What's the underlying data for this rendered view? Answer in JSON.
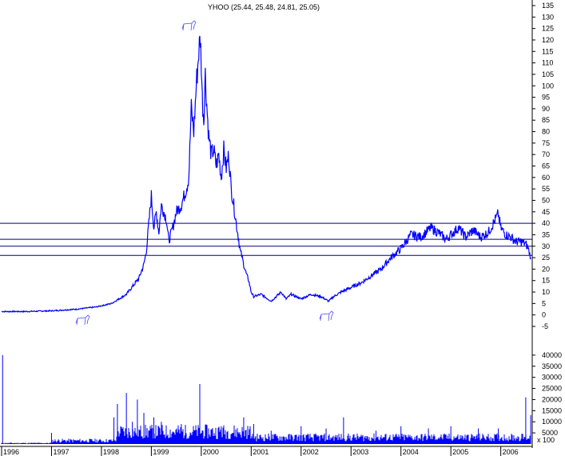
{
  "chart_data": {
    "type": "line",
    "title": "YHOO (25.44, 25.48, 24.81, 25.05)",
    "colors": {
      "price": "#0000ff",
      "volume": "#0000ff",
      "hlines": "#000080",
      "annotations": "#4a4aff",
      "axis": "#000000"
    },
    "x_ticks": [
      "1996",
      "1997",
      "1998",
      "1999",
      "2000",
      "2001",
      "2002",
      "2003",
      "2004",
      "2005",
      "2006"
    ],
    "y_ticks": [
      "-5",
      "0",
      "5",
      "10",
      "15",
      "20",
      "25",
      "30",
      "35",
      "40",
      "45",
      "50",
      "55",
      "60",
      "65",
      "70",
      "75",
      "80",
      "85",
      "90",
      "95",
      "100",
      "105",
      "110",
      "115",
      "120",
      "125",
      "130",
      "135"
    ],
    "ylim": [
      -5,
      135
    ],
    "volume_ticks": [
      "5000",
      "10000",
      "15000",
      "20000",
      "25000",
      "30000",
      "35000",
      "40000"
    ],
    "volume_ylim": [
      0,
      45000
    ],
    "volume_suffix_label": "x 100",
    "horizontal_lines": [
      40,
      33,
      30,
      26
    ],
    "series": [
      {
        "kind": "price",
        "x": [
          1996.0,
          1996.5,
          1997.0,
          1997.5,
          1997.9,
          1998.2,
          1998.5,
          1998.75,
          1998.85,
          1998.9,
          1998.95,
          1999.0,
          1999.05,
          1999.1,
          1999.15,
          1999.2,
          1999.3,
          1999.35,
          1999.45,
          1999.5,
          1999.6,
          1999.7,
          1999.75,
          1999.8,
          1999.85,
          1999.9,
          1999.95,
          1999.98,
          2000.0,
          2000.02,
          2000.05,
          2000.08,
          2000.12,
          2000.15,
          2000.2,
          2000.25,
          2000.3,
          2000.35,
          2000.4,
          2000.45,
          2000.5,
          2000.55,
          2000.6,
          2000.65,
          2000.7,
          2000.75,
          2000.78,
          2000.82,
          2000.85,
          2000.9,
          2000.95,
          2001.0,
          2001.05,
          2001.2,
          2001.4,
          2001.5,
          2001.6,
          2001.7,
          2001.8,
          2002.0,
          2002.2,
          2002.4,
          2002.55,
          2002.65,
          2002.8,
          2003.0,
          2003.2,
          2003.4,
          2003.6,
          2003.8,
          2004.0,
          2004.1,
          2004.2,
          2004.4,
          2004.6,
          2004.75,
          2004.9,
          2005.0,
          2005.15,
          2005.3,
          2005.45,
          2005.6,
          2005.75,
          2005.85,
          2005.95,
          2006.0,
          2006.1,
          2006.2,
          2006.3,
          2006.4,
          2006.5,
          2006.55,
          2006.6
        ],
        "values": [
          1.5,
          1.5,
          1.8,
          2.5,
          3.5,
          5,
          9,
          16,
          22,
          28,
          40,
          52,
          38,
          45,
          36,
          48,
          42,
          32,
          40,
          45,
          48,
          55,
          60,
          90,
          80,
          100,
          115,
          121,
          110,
          95,
          85,
          105,
          88,
          78,
          70,
          72,
          65,
          70,
          60,
          72,
          64,
          70,
          55,
          48,
          40,
          33,
          28,
          25,
          22,
          18,
          15,
          10,
          8,
          9,
          6,
          8,
          10,
          7,
          9,
          7,
          9,
          8,
          6,
          8,
          10,
          12,
          14,
          17,
          20,
          25,
          29,
          32,
          35,
          34,
          38,
          36,
          33,
          35,
          38,
          34,
          37,
          34,
          36,
          40,
          44,
          38,
          35,
          34,
          32,
          32,
          31,
          29,
          25
        ],
        "name": ""
      }
    ],
    "volume": {
      "spikes": [
        {
          "x": 1996.02,
          "v": 40000
        },
        {
          "x": 1997.0,
          "v": 5000
        },
        {
          "x": 1998.25,
          "v": 12000
        },
        {
          "x": 1998.32,
          "v": 18000
        },
        {
          "x": 1998.5,
          "v": 23000
        },
        {
          "x": 1998.62,
          "v": 10000
        },
        {
          "x": 1998.72,
          "v": 20000
        },
        {
          "x": 1998.85,
          "v": 14000
        },
        {
          "x": 1999.05,
          "v": 12000
        },
        {
          "x": 1999.2,
          "v": 10000
        },
        {
          "x": 1999.6,
          "v": 9000
        },
        {
          "x": 1999.97,
          "v": 27000
        },
        {
          "x": 2000.4,
          "v": 8000
        },
        {
          "x": 2000.85,
          "v": 12000
        },
        {
          "x": 2001.05,
          "v": 9000
        },
        {
          "x": 2001.4,
          "v": 6000
        },
        {
          "x": 2002.0,
          "v": 8000
        },
        {
          "x": 2002.5,
          "v": 7000
        },
        {
          "x": 2002.85,
          "v": 12000
        },
        {
          "x": 2003.5,
          "v": 6000
        },
        {
          "x": 2004.0,
          "v": 8000
        },
        {
          "x": 2004.55,
          "v": 7000
        },
        {
          "x": 2005.0,
          "v": 8000
        },
        {
          "x": 2005.55,
          "v": 7000
        },
        {
          "x": 2005.95,
          "v": 7000
        },
        {
          "x": 2006.5,
          "v": 21000
        },
        {
          "x": 2006.6,
          "v": 13000
        }
      ],
      "base": 3000
    }
  }
}
